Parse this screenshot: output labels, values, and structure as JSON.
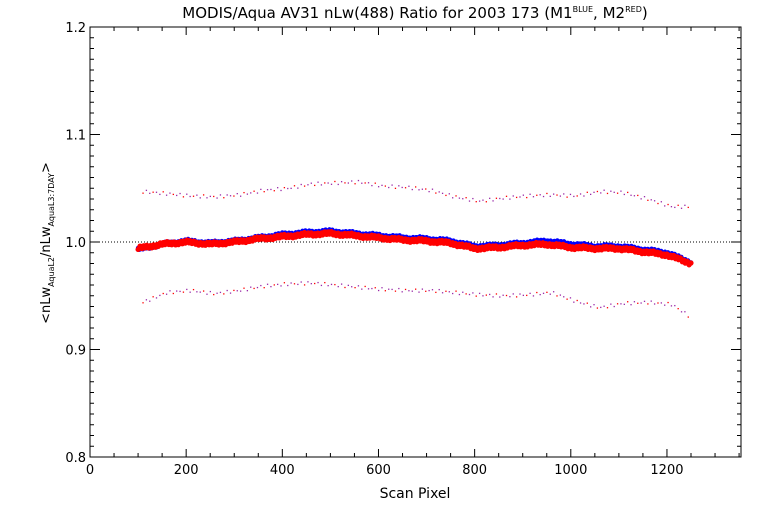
{
  "chart_data": {
    "type": "scatter",
    "title": {
      "main": "MODIS/Aqua AV31 nLw(488) Ratio for 2003 173 (M1",
      "sup1": "BLUE",
      "mid": ", M2",
      "sup2": "RED",
      "end": ")"
    },
    "xlabel": "Scan Pixel",
    "ylabel": {
      "open": "<nLw",
      "sub1": "AquaL2",
      "slash": "/nLw",
      "sub2": "AquaL3:7DAY",
      "close": ">"
    },
    "xlim": [
      0,
      1354
    ],
    "ylim": [
      0.8,
      1.2
    ],
    "xticks": [
      0,
      200,
      400,
      600,
      800,
      1000,
      1200
    ],
    "yticks": [
      0.8,
      0.9,
      1.0,
      1.1,
      1.2
    ],
    "xtick_labels": [
      "0",
      "200",
      "400",
      "600",
      "800",
      "1000",
      "1200"
    ],
    "ytick_labels": [
      "0.8",
      "0.9",
      "1.0",
      "1.1",
      "1.2"
    ],
    "reference_line": 1.0,
    "grid": false,
    "legend": "none",
    "colors": {
      "blue": "#0000ff",
      "red": "#ff0000",
      "spread": "#9a2aa8"
    },
    "series": [
      {
        "color": "blue",
        "x": [
          100,
          150,
          200,
          250,
          300,
          350,
          400,
          450,
          500,
          550,
          600,
          650,
          700,
          750,
          800,
          850,
          900,
          950,
          1000,
          1050,
          1100,
          1150,
          1200,
          1250
        ],
        "y": [
          0.993,
          0.998,
          1.001,
          0.999,
          1.001,
          1.004,
          1.007,
          1.009,
          1.01,
          1.008,
          1.006,
          1.004,
          1.003,
          1.001,
          0.996,
          0.997,
          0.999,
          1.001,
          0.998,
          0.996,
          0.996,
          0.993,
          0.99,
          0.981
        ]
      },
      {
        "color": "red",
        "x": [
          100,
          150,
          200,
          250,
          300,
          350,
          400,
          450,
          500,
          550,
          600,
          650,
          700,
          750,
          800,
          850,
          900,
          950,
          1000,
          1050,
          1100,
          1150,
          1200,
          1250
        ],
        "y": [
          0.994,
          0.998,
          1.0,
          0.998,
          1.0,
          1.003,
          1.005,
          1.007,
          1.008,
          1.006,
          1.004,
          1.002,
          1.001,
          0.999,
          0.994,
          0.995,
          0.997,
          0.998,
          0.995,
          0.994,
          0.994,
          0.991,
          0.988,
          0.98
        ]
      },
      {
        "color": "spread",
        "x": [
          110,
          160,
          210,
          260,
          310,
          360,
          410,
          460,
          510,
          560,
          610,
          660,
          710,
          760,
          810,
          860,
          910,
          960,
          1010,
          1060,
          1110,
          1160,
          1210,
          1250
        ],
        "y": [
          1.047,
          1.045,
          1.043,
          1.042,
          1.044,
          1.048,
          1.05,
          1.054,
          1.055,
          1.056,
          1.052,
          1.051,
          1.048,
          1.042,
          1.038,
          1.041,
          1.043,
          1.044,
          1.043,
          1.047,
          1.046,
          1.04,
          1.033,
          1.033
        ]
      },
      {
        "color": "spread",
        "x": [
          110,
          160,
          210,
          260,
          310,
          360,
          410,
          460,
          510,
          560,
          610,
          660,
          710,
          760,
          810,
          860,
          910,
          960,
          1010,
          1060,
          1110,
          1160,
          1210,
          1250
        ],
        "y": [
          0.944,
          0.953,
          0.955,
          0.952,
          0.955,
          0.959,
          0.961,
          0.962,
          0.96,
          0.958,
          0.956,
          0.955,
          0.955,
          0.953,
          0.951,
          0.95,
          0.951,
          0.953,
          0.945,
          0.939,
          0.943,
          0.944,
          0.942,
          0.93
        ]
      }
    ]
  }
}
